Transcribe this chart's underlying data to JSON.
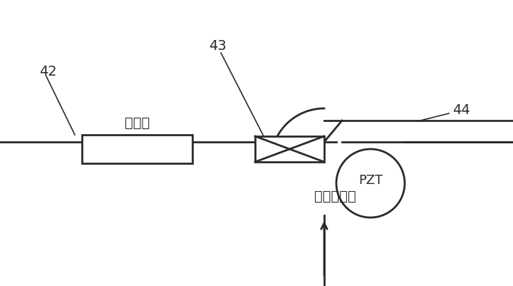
{
  "bg_color": "#ffffff",
  "line_color": "#2a2a2a",
  "label_42": "42",
  "label_43": "43",
  "label_44": "44",
  "label_pzt": "PZT",
  "label_polarizer": "偏振器",
  "label_coupler": "调制耦合器",
  "fig_width": 7.2,
  "fig_height": 4.02,
  "dpi": 100
}
